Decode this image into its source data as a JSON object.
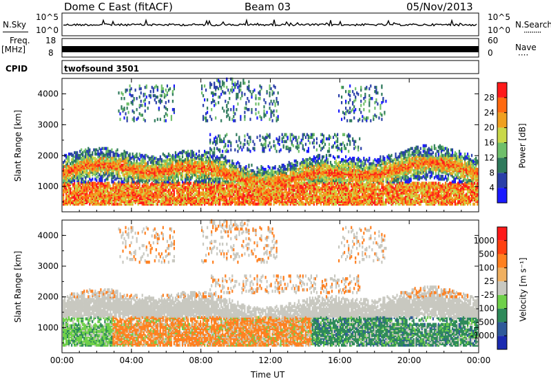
{
  "header": {
    "station": "Dome C East (fitACF)",
    "beam": "Beam 03",
    "date": "05/Nov/2013"
  },
  "noise_panel": {
    "left_label": "N.Sky",
    "right_label": "N.Search",
    "right_label_line": "·········",
    "left_ticks": [
      "10^5",
      "10^0"
    ],
    "right_ticks": [
      "10^5",
      "10^0"
    ]
  },
  "freq_panel": {
    "left_label": "Freq.",
    "left_unit": "[MHz]",
    "right_label": "Nave",
    "right_label_line": "····",
    "left_ticks": [
      "18",
      "8"
    ],
    "right_ticks": [
      "60",
      "0"
    ]
  },
  "cpid": {
    "label": "CPID",
    "value": "twofsound 3501"
  },
  "chart_data": [
    {
      "type": "heatmap",
      "title": "",
      "ylabel": "Slant Range [km]",
      "xlabel": "",
      "ylim": [
        180,
        4500
      ],
      "yticks": [
        "1000",
        "2000",
        "3000",
        "4000"
      ],
      "xticks": [
        "00:00",
        "04:00",
        "08:00",
        "12:00",
        "16:00",
        "20:00",
        "00:00"
      ],
      "colorbar": {
        "label": "Power [dB]",
        "range": [
          0,
          32
        ],
        "ticks": [
          "4",
          "8",
          "12",
          "16",
          "20",
          "24",
          "28"
        ],
        "colors": [
          "#1a1aff",
          "#2a3fa8",
          "#2f7a5c",
          "#6fbf6a",
          "#c9d84a",
          "#f0a020",
          "#ff6a10",
          "#ff1a1a"
        ]
      }
    },
    {
      "type": "heatmap",
      "title": "",
      "ylabel": "Slant Range [km]",
      "xlabel": "Time UT",
      "ylim": [
        180,
        4500
      ],
      "yticks": [
        "1000",
        "2000",
        "3000",
        "4000"
      ],
      "xticks": [
        "00:00",
        "04:00",
        "08:00",
        "12:00",
        "16:00",
        "20:00",
        "00:00"
      ],
      "colorbar": {
        "label": "Velocity [m s⁻¹]",
        "ticks": [
          "1000",
          "500",
          "100",
          "25",
          "-25",
          "-100",
          "-500",
          "-1000"
        ],
        "colors": [
          "#1a2ab0",
          "#2f5a9a",
          "#2e8a5a",
          "#6fd04a",
          "#c8c8c0",
          "#f0b060",
          "#ff8020",
          "#ff4010",
          "#ff1a1a"
        ]
      }
    }
  ]
}
